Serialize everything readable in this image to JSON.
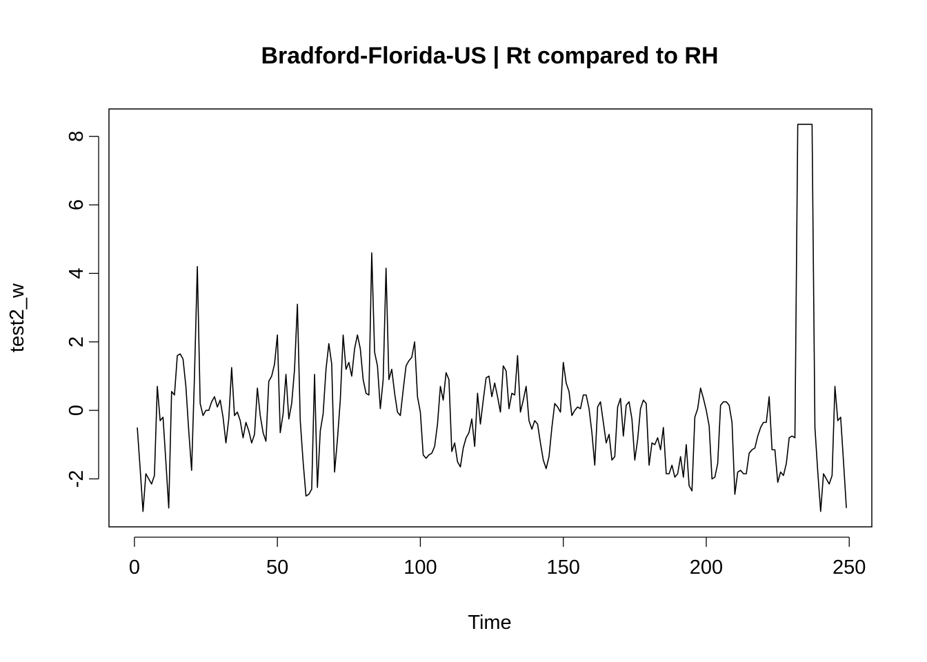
{
  "chart_data": {
    "type": "line",
    "title": "Bradford-Florida-US | Rt compared to RH",
    "xlabel": "Time",
    "ylabel": "test2_w",
    "xlim": [
      -8.9,
      257.9
    ],
    "ylim": [
      -3.4,
      8.8
    ],
    "x_ticks": [
      0,
      50,
      100,
      150,
      200,
      250
    ],
    "x_tick_labels": [
      "0",
      "50",
      "100",
      "150",
      "200",
      "250"
    ],
    "y_ticks": [
      -2,
      0,
      2,
      4,
      6,
      8
    ],
    "y_tick_labels": [
      "-2",
      "0",
      "2",
      "4",
      "6",
      "8"
    ],
    "grid": false,
    "series": [
      {
        "color": "#000000",
        "x_start": 1,
        "values": [
          -0.5,
          -1.7,
          -2.95,
          -1.85,
          -2.0,
          -2.15,
          -1.9,
          0.7,
          -0.3,
          -0.2,
          -1.5,
          -2.85,
          0.55,
          0.45,
          1.6,
          1.65,
          1.5,
          0.7,
          -0.6,
          -1.75,
          1.0,
          4.2,
          0.2,
          -0.15,
          0.0,
          0.0,
          0.25,
          0.4,
          0.1,
          0.3,
          -0.2,
          -0.95,
          -0.25,
          1.25,
          -0.15,
          -0.05,
          -0.3,
          -0.8,
          -0.35,
          -0.6,
          -0.95,
          -0.7,
          0.65,
          -0.15,
          -0.65,
          -0.9,
          0.85,
          1.0,
          1.35,
          2.2,
          -0.65,
          -0.1,
          1.05,
          -0.25,
          0.2,
          1.2,
          3.1,
          -0.3,
          -1.5,
          -2.5,
          -2.45,
          -2.3,
          1.05,
          -2.25,
          -0.6,
          -0.1,
          1.2,
          1.95,
          1.35,
          -1.8,
          -0.85,
          0.3,
          2.2,
          1.2,
          1.4,
          1.0,
          1.8,
          2.2,
          1.8,
          0.9,
          0.5,
          0.45,
          4.6,
          1.7,
          1.3,
          0.05,
          0.9,
          4.15,
          0.9,
          1.2,
          0.5,
          -0.05,
          -0.15,
          0.6,
          1.3,
          1.45,
          1.55,
          2.0,
          0.4,
          -0.05,
          -1.3,
          -1.4,
          -1.3,
          -1.25,
          -1.05,
          -0.4,
          0.7,
          0.3,
          1.1,
          0.9,
          -1.2,
          -0.95,
          -1.5,
          -1.65,
          -1.1,
          -0.8,
          -0.65,
          -0.25,
          -1.05,
          0.5,
          -0.4,
          0.3,
          0.95,
          1.0,
          0.4,
          0.8,
          0.4,
          -0.05,
          1.3,
          1.15,
          0.05,
          0.5,
          0.45,
          1.6,
          -0.05,
          0.3,
          0.7,
          -0.3,
          -0.55,
          -0.3,
          -0.4,
          -0.95,
          -1.45,
          -1.7,
          -1.35,
          -0.5,
          0.2,
          0.1,
          -0.05,
          1.4,
          0.8,
          0.55,
          -0.15,
          0.0,
          0.1,
          0.05,
          0.45,
          0.45,
          0.05,
          -0.65,
          -1.6,
          0.1,
          0.25,
          -0.35,
          -0.95,
          -0.7,
          -1.45,
          -1.35,
          0.1,
          0.35,
          -0.75,
          0.15,
          0.25,
          -0.25,
          -1.45,
          -0.85,
          0.05,
          0.3,
          0.2,
          -1.6,
          -0.95,
          -1.0,
          -0.8,
          -1.15,
          -0.5,
          -1.85,
          -1.85,
          -1.6,
          -1.95,
          -1.85,
          -1.35,
          -1.95,
          -1.0,
          -2.2,
          -2.35,
          -0.2,
          0.05,
          0.65,
          0.35,
          0.0,
          -0.45,
          -2.0,
          -1.95,
          -1.55,
          0.15,
          0.25,
          0.25,
          0.15,
          -0.35,
          -2.45,
          -1.8,
          -1.75,
          -1.85,
          -1.85,
          -1.25,
          -1.15,
          -1.1,
          -0.75,
          -0.5,
          -0.35,
          -0.35,
          0.4,
          -1.15,
          -1.15,
          -2.1,
          -1.8,
          -1.9,
          -1.55,
          -0.8,
          -0.75,
          -0.8,
          8.35,
          8.35,
          8.35,
          8.35,
          8.35,
          8.35,
          -0.5,
          -1.8,
          -2.95,
          -1.85,
          -2.0,
          -2.15,
          -1.9,
          0.7,
          -0.3,
          -0.2,
          -1.5,
          -2.85
        ]
      }
    ]
  }
}
